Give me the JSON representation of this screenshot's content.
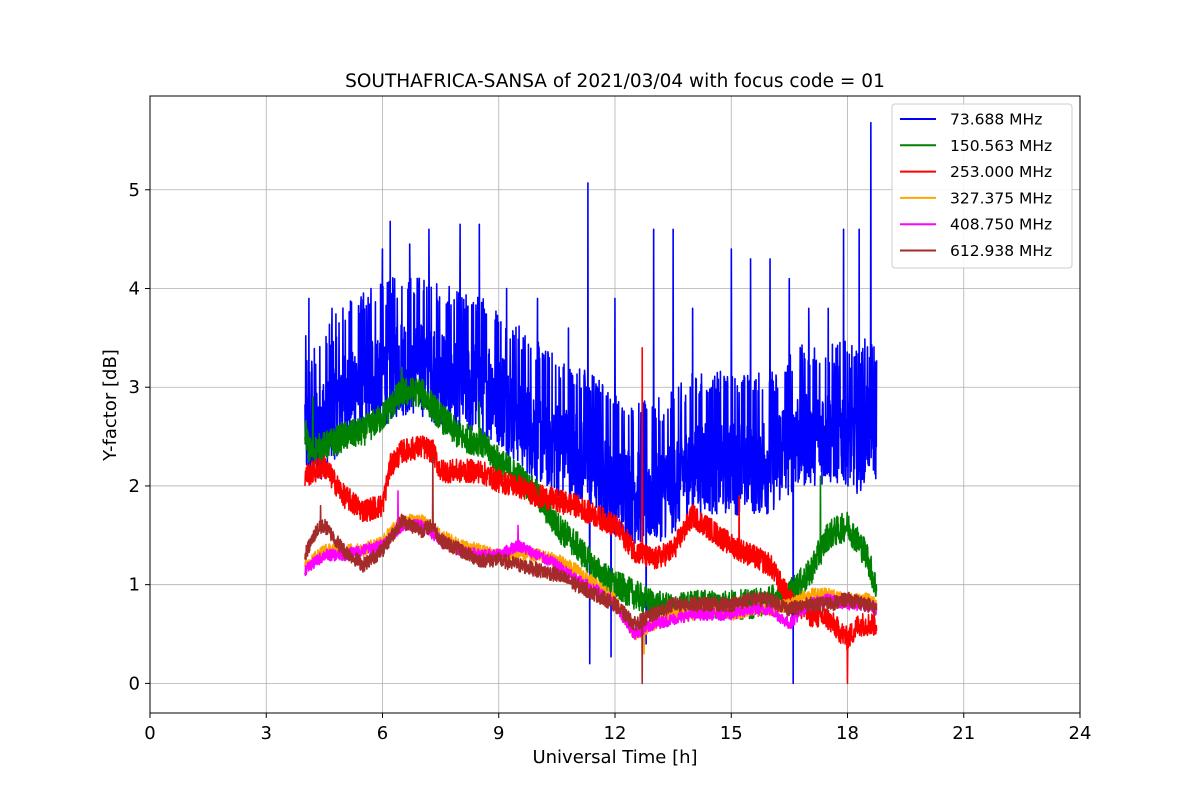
{
  "chart_data": {
    "type": "line",
    "title": "SOUTHAFRICA-SANSA of 2021/03/04 with focus code = 01",
    "xlabel": "Universal Time [h]",
    "ylabel": "Y-factor [dB]",
    "xlim": [
      0,
      24
    ],
    "ylim": [
      -0.3,
      5.95
    ],
    "xticks": [
      0,
      3,
      6,
      9,
      12,
      15,
      18,
      21,
      24
    ],
    "yticks": [
      0,
      1,
      2,
      3,
      4,
      5
    ],
    "grid": true,
    "legend_position": "top-right",
    "series": [
      {
        "name": " 73.688 MHz",
        "color": "#0000ff",
        "noise": 1.1,
        "points": [
          [
            4.0,
            2.6
          ],
          [
            4.1,
            2.4
          ],
          [
            4.5,
            2.6
          ],
          [
            5.0,
            2.9
          ],
          [
            5.5,
            3.0
          ],
          [
            6.0,
            3.1
          ],
          [
            6.5,
            3.2
          ],
          [
            7.0,
            3.2
          ],
          [
            7.5,
            3.1
          ],
          [
            8.0,
            3.0
          ],
          [
            8.5,
            3.0
          ],
          [
            9.0,
            2.9
          ],
          [
            9.5,
            2.7
          ],
          [
            10.0,
            2.5
          ],
          [
            10.5,
            2.4
          ],
          [
            11.0,
            2.3
          ],
          [
            11.5,
            2.2
          ],
          [
            12.0,
            2.0
          ],
          [
            12.5,
            1.9
          ],
          [
            13.0,
            1.9
          ],
          [
            13.5,
            2.0
          ],
          [
            14.0,
            2.2
          ],
          [
            14.5,
            2.2
          ],
          [
            15.0,
            2.2
          ],
          [
            15.5,
            2.2
          ],
          [
            16.0,
            2.2
          ],
          [
            16.5,
            2.4
          ],
          [
            17.0,
            2.5
          ],
          [
            17.5,
            2.5
          ],
          [
            18.0,
            2.5
          ],
          [
            18.3,
            2.4
          ],
          [
            18.5,
            2.6
          ],
          [
            18.75,
            2.5
          ]
        ],
        "spikes": [
          [
            4.1,
            3.9
          ],
          [
            4.7,
            3.8
          ],
          [
            5.7,
            4.0
          ],
          [
            6.0,
            4.4
          ],
          [
            6.2,
            4.68
          ],
          [
            6.7,
            4.45
          ],
          [
            7.2,
            4.6
          ],
          [
            8.0,
            4.65
          ],
          [
            8.5,
            4.65
          ],
          [
            9.2,
            4.0
          ],
          [
            10.0,
            3.9
          ],
          [
            10.8,
            3.6
          ],
          [
            11.3,
            5.07
          ],
          [
            12.0,
            3.9
          ],
          [
            13.0,
            4.6
          ],
          [
            13.5,
            4.6
          ],
          [
            14.0,
            3.8
          ],
          [
            15.0,
            4.4
          ],
          [
            15.5,
            4.3
          ],
          [
            16.0,
            4.3
          ],
          [
            16.5,
            4.1
          ],
          [
            17.0,
            3.8
          ],
          [
            17.5,
            3.8
          ],
          [
            17.9,
            4.6
          ],
          [
            18.3,
            4.6
          ],
          [
            18.6,
            5.68
          ],
          [
            11.35,
            0.2
          ],
          [
            11.9,
            0.27
          ],
          [
            12.8,
            0.4
          ],
          [
            16.6,
            0.0
          ]
        ]
      },
      {
        "name": "150.563 MHz",
        "color": "#008000",
        "noise": 0.3,
        "points": [
          [
            4.0,
            2.6
          ],
          [
            4.1,
            2.35
          ],
          [
            4.5,
            2.4
          ],
          [
            5.0,
            2.5
          ],
          [
            5.5,
            2.55
          ],
          [
            6.0,
            2.7
          ],
          [
            6.5,
            2.95
          ],
          [
            7.0,
            2.95
          ],
          [
            7.5,
            2.7
          ],
          [
            8.0,
            2.5
          ],
          [
            8.5,
            2.45
          ],
          [
            9.0,
            2.25
          ],
          [
            9.5,
            2.1
          ],
          [
            10.0,
            1.9
          ],
          [
            10.5,
            1.6
          ],
          [
            11.0,
            1.4
          ],
          [
            11.5,
            1.15
          ],
          [
            12.0,
            1.0
          ],
          [
            12.5,
            0.9
          ],
          [
            13.0,
            0.8
          ],
          [
            13.5,
            0.75
          ],
          [
            14.0,
            0.8
          ],
          [
            14.5,
            0.8
          ],
          [
            15.0,
            0.8
          ],
          [
            15.5,
            0.8
          ],
          [
            16.0,
            0.85
          ],
          [
            16.5,
            0.9
          ],
          [
            17.0,
            1.1
          ],
          [
            17.5,
            1.5
          ],
          [
            18.0,
            1.6
          ],
          [
            18.5,
            1.3
          ],
          [
            18.75,
            0.95
          ]
        ],
        "spikes": [
          [
            4.2,
            2.9
          ],
          [
            6.5,
            3.2
          ],
          [
            8.5,
            2.85
          ],
          [
            17.3,
            2.1
          ]
        ]
      },
      {
        "name": "253.000 MHz",
        "color": "#ff0000",
        "noise": 0.24,
        "points": [
          [
            4.0,
            2.1
          ],
          [
            4.5,
            2.2
          ],
          [
            5.0,
            1.9
          ],
          [
            5.5,
            1.75
          ],
          [
            6.0,
            1.8
          ],
          [
            6.2,
            2.2
          ],
          [
            6.5,
            2.35
          ],
          [
            7.0,
            2.4
          ],
          [
            7.3,
            2.35
          ],
          [
            7.5,
            2.15
          ],
          [
            8.0,
            2.15
          ],
          [
            8.5,
            2.15
          ],
          [
            9.0,
            2.05
          ],
          [
            9.5,
            2.0
          ],
          [
            10.0,
            1.9
          ],
          [
            10.5,
            1.85
          ],
          [
            11.0,
            1.8
          ],
          [
            11.5,
            1.7
          ],
          [
            12.0,
            1.6
          ],
          [
            12.5,
            1.35
          ],
          [
            13.0,
            1.25
          ],
          [
            13.5,
            1.35
          ],
          [
            14.0,
            1.7
          ],
          [
            14.5,
            1.55
          ],
          [
            15.0,
            1.4
          ],
          [
            15.5,
            1.3
          ],
          [
            16.0,
            1.2
          ],
          [
            16.5,
            0.85
          ],
          [
            17.0,
            0.7
          ],
          [
            17.5,
            0.65
          ],
          [
            18.0,
            0.45
          ],
          [
            18.3,
            0.6
          ],
          [
            18.75,
            0.6
          ]
        ],
        "spikes": [
          [
            12.7,
            3.4
          ],
          [
            18.0,
            0.0
          ],
          [
            15.2,
            1.9
          ]
        ]
      },
      {
        "name": "327.375 MHz",
        "color": "#ffa500",
        "noise": 0.13,
        "points": [
          [
            4.0,
            1.2
          ],
          [
            4.5,
            1.35
          ],
          [
            5.0,
            1.35
          ],
          [
            5.5,
            1.35
          ],
          [
            6.0,
            1.45
          ],
          [
            6.5,
            1.65
          ],
          [
            7.0,
            1.65
          ],
          [
            7.5,
            1.5
          ],
          [
            8.0,
            1.4
          ],
          [
            8.5,
            1.35
          ],
          [
            9.0,
            1.3
          ],
          [
            9.5,
            1.3
          ],
          [
            10.0,
            1.3
          ],
          [
            10.5,
            1.25
          ],
          [
            11.0,
            1.15
          ],
          [
            11.5,
            1.0
          ],
          [
            12.0,
            0.85
          ],
          [
            12.5,
            0.5
          ],
          [
            13.0,
            0.6
          ],
          [
            13.5,
            0.7
          ],
          [
            14.0,
            0.7
          ],
          [
            14.5,
            0.75
          ],
          [
            15.0,
            0.7
          ],
          [
            15.5,
            0.75
          ],
          [
            16.0,
            0.75
          ],
          [
            16.5,
            0.8
          ],
          [
            17.0,
            0.9
          ],
          [
            17.5,
            0.9
          ],
          [
            18.0,
            0.85
          ],
          [
            18.5,
            0.85
          ],
          [
            18.75,
            0.8
          ]
        ],
        "spikes": [
          [
            12.75,
            0.3
          ],
          [
            7.3,
            1.75
          ]
        ]
      },
      {
        "name": "408.750 MHz",
        "color": "#ff00ff",
        "noise": 0.12,
        "points": [
          [
            4.0,
            1.15
          ],
          [
            4.5,
            1.3
          ],
          [
            5.0,
            1.3
          ],
          [
            5.5,
            1.35
          ],
          [
            6.0,
            1.4
          ],
          [
            6.5,
            1.6
          ],
          [
            7.0,
            1.6
          ],
          [
            7.5,
            1.45
          ],
          [
            8.0,
            1.35
          ],
          [
            8.5,
            1.3
          ],
          [
            9.0,
            1.3
          ],
          [
            9.5,
            1.4
          ],
          [
            10.0,
            1.3
          ],
          [
            10.5,
            1.2
          ],
          [
            11.0,
            1.05
          ],
          [
            11.5,
            0.95
          ],
          [
            12.0,
            0.8
          ],
          [
            12.5,
            0.5
          ],
          [
            13.0,
            0.6
          ],
          [
            13.5,
            0.65
          ],
          [
            14.0,
            0.7
          ],
          [
            14.5,
            0.7
          ],
          [
            15.0,
            0.7
          ],
          [
            15.5,
            0.75
          ],
          [
            16.0,
            0.75
          ],
          [
            16.5,
            0.6
          ],
          [
            17.0,
            0.8
          ],
          [
            17.5,
            0.85
          ],
          [
            18.0,
            0.8
          ],
          [
            18.5,
            0.8
          ],
          [
            18.75,
            0.75
          ]
        ],
        "spikes": [
          [
            6.4,
            1.95
          ],
          [
            9.5,
            1.6
          ]
        ]
      },
      {
        "name": "612.938 MHz",
        "color": "#a52a2a",
        "noise": 0.15,
        "points": [
          [
            4.0,
            1.3
          ],
          [
            4.3,
            1.55
          ],
          [
            4.5,
            1.6
          ],
          [
            5.0,
            1.35
          ],
          [
            5.5,
            1.2
          ],
          [
            6.0,
            1.35
          ],
          [
            6.5,
            1.65
          ],
          [
            7.0,
            1.55
          ],
          [
            7.3,
            1.6
          ],
          [
            7.5,
            1.45
          ],
          [
            8.0,
            1.35
          ],
          [
            8.5,
            1.25
          ],
          [
            9.0,
            1.25
          ],
          [
            9.5,
            1.2
          ],
          [
            10.0,
            1.15
          ],
          [
            10.5,
            1.1
          ],
          [
            11.0,
            1.0
          ],
          [
            11.5,
            0.9
          ],
          [
            12.0,
            0.8
          ],
          [
            12.5,
            0.6
          ],
          [
            13.0,
            0.7
          ],
          [
            13.5,
            0.8
          ],
          [
            14.0,
            0.8
          ],
          [
            14.5,
            0.8
          ],
          [
            15.0,
            0.8
          ],
          [
            15.5,
            0.85
          ],
          [
            16.0,
            0.85
          ],
          [
            16.5,
            0.75
          ],
          [
            17.0,
            0.8
          ],
          [
            17.5,
            0.8
          ],
          [
            18.0,
            0.85
          ],
          [
            18.5,
            0.8
          ],
          [
            18.75,
            0.75
          ]
        ],
        "spikes": [
          [
            7.3,
            2.3
          ],
          [
            12.7,
            0.0
          ],
          [
            4.4,
            1.8
          ]
        ]
      }
    ]
  }
}
